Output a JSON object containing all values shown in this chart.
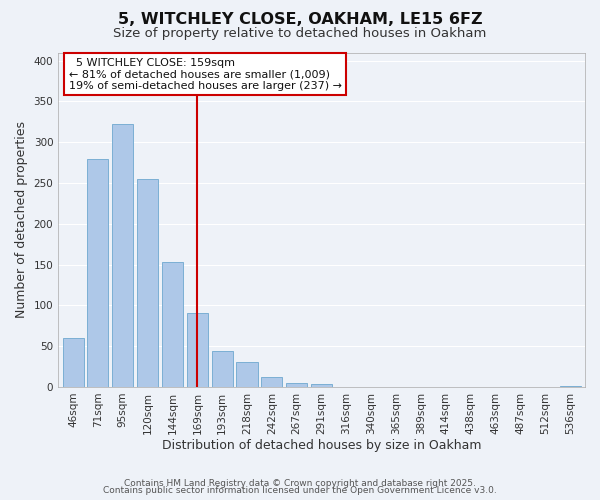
{
  "title": "5, WITCHLEY CLOSE, OAKHAM, LE15 6FZ",
  "subtitle": "Size of property relative to detached houses in Oakham",
  "xlabel": "Distribution of detached houses by size in Oakham",
  "ylabel": "Number of detached properties",
  "bar_labels": [
    "46sqm",
    "71sqm",
    "95sqm",
    "120sqm",
    "144sqm",
    "169sqm",
    "193sqm",
    "218sqm",
    "242sqm",
    "267sqm",
    "291sqm",
    "316sqm",
    "340sqm",
    "365sqm",
    "389sqm",
    "414sqm",
    "438sqm",
    "463sqm",
    "487sqm",
    "512sqm",
    "536sqm"
  ],
  "bar_values": [
    60,
    280,
    322,
    255,
    153,
    91,
    44,
    30,
    12,
    5,
    4,
    0,
    0,
    0,
    0,
    0,
    0,
    0,
    0,
    0,
    1
  ],
  "bar_color": "#aec8e8",
  "bar_edge_color": "#7bafd4",
  "vline_x": 5,
  "vline_color": "#cc0000",
  "annotation_title": "5 WITCHLEY CLOSE: 159sqm",
  "annotation_line1": "← 81% of detached houses are smaller (1,009)",
  "annotation_line2": "19% of semi-detached houses are larger (237) →",
  "annotation_box_facecolor": "#ffffff",
  "annotation_box_edgecolor": "#cc0000",
  "ylim": [
    0,
    410
  ],
  "yticks": [
    0,
    50,
    100,
    150,
    200,
    250,
    300,
    350,
    400
  ],
  "footnote1": "Contains HM Land Registry data © Crown copyright and database right 2025.",
  "footnote2": "Contains public sector information licensed under the Open Government Licence v3.0.",
  "background_color": "#eef2f8",
  "grid_color": "#ffffff",
  "title_fontsize": 11.5,
  "subtitle_fontsize": 9.5,
  "tick_fontsize": 7.5,
  "label_fontsize": 9,
  "footnote_fontsize": 6.5,
  "annotation_fontsize": 8
}
